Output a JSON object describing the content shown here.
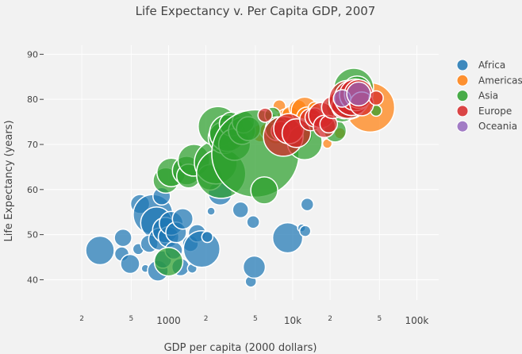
{
  "chart_data": {
    "type": "scatter",
    "title": "Life Expectancy v. Per Capita GDP, 2007",
    "xlabel": "GDP per capita (2000 dollars)",
    "ylabel": "Life Expectancy (years)",
    "x_scale": "log",
    "xlim": [
      100,
      150000
    ],
    "ylim": [
      35.5,
      92
    ],
    "x_major_ticks": [
      {
        "value": 1000,
        "label": "1000"
      },
      {
        "value": 10000,
        "label": "10k"
      },
      {
        "value": 100000,
        "label": "100k"
      }
    ],
    "x_minor_ticks": [
      {
        "value": 200,
        "label": "2"
      },
      {
        "value": 500,
        "label": "5"
      },
      {
        "value": 2000,
        "label": "2"
      },
      {
        "value": 5000,
        "label": "5"
      },
      {
        "value": 20000,
        "label": "2"
      },
      {
        "value": 50000,
        "label": "5"
      }
    ],
    "y_ticks": [
      40,
      50,
      60,
      70,
      80,
      90
    ],
    "grid": true,
    "legend_position": "top-right",
    "marker_size_unit": "marker diameter in px",
    "series": [
      {
        "name": "Africa",
        "color": "#1f77b4",
        "points": [
          [
            280,
            46.5,
            36
          ],
          [
            430,
            49.3,
            22
          ],
          [
            420,
            45.7,
            18
          ],
          [
            490,
            43.5,
            24
          ],
          [
            570,
            46.8,
            14
          ],
          [
            590,
            56.8,
            24
          ],
          [
            650,
            42.5,
            10
          ],
          [
            750,
            54.5,
            50
          ],
          [
            800,
            52.6,
            40
          ],
          [
            700,
            48.0,
            22
          ],
          [
            850,
            49.0,
            28
          ],
          [
            820,
            42.0,
            26
          ],
          [
            900,
            44.5,
            22
          ],
          [
            880,
            58.5,
            22
          ],
          [
            940,
            51.0,
            32
          ],
          [
            1000,
            49.5,
            26
          ],
          [
            1050,
            52.5,
            30
          ],
          [
            1100,
            46.5,
            22
          ],
          [
            1150,
            50.5,
            26
          ],
          [
            1250,
            42.8,
            22
          ],
          [
            1300,
            53.5,
            26
          ],
          [
            1500,
            48.0,
            20
          ],
          [
            1550,
            42.5,
            12
          ],
          [
            1700,
            50.3,
            22
          ],
          [
            1850,
            46.8,
            46
          ],
          [
            2050,
            49.5,
            14
          ],
          [
            2200,
            55.2,
            10
          ],
          [
            2600,
            59.2,
            30
          ],
          [
            3800,
            55.5,
            20
          ],
          [
            4600,
            39.6,
            14
          ],
          [
            4800,
            52.8,
            16
          ],
          [
            4900,
            42.8,
            28
          ],
          [
            9100,
            49.3,
            38
          ],
          [
            11800,
            51.5,
            10
          ],
          [
            12600,
            50.8,
            14
          ],
          [
            13100,
            56.7,
            16
          ]
        ]
      },
      {
        "name": "Americas",
        "color": "#ff7f0e",
        "points": [
          [
            3000,
            71.5,
            22
          ],
          [
            3500,
            70.5,
            16
          ],
          [
            5500,
            72.5,
            22
          ],
          [
            6400,
            73.0,
            22
          ],
          [
            7300,
            72.4,
            26
          ],
          [
            7800,
            78.5,
            16
          ],
          [
            8600,
            73.8,
            16
          ],
          [
            9000,
            75.5,
            28
          ],
          [
            9600,
            76.5,
            22
          ],
          [
            10400,
            73.2,
            28
          ],
          [
            11000,
            78.0,
            22
          ],
          [
            11900,
            74.5,
            24
          ],
          [
            12500,
            77.5,
            34
          ],
          [
            13000,
            76.0,
            26
          ],
          [
            15000,
            78.0,
            16
          ],
          [
            18000,
            75.5,
            16
          ],
          [
            19000,
            70.2,
            12
          ],
          [
            24000,
            72.5,
            14
          ],
          [
            36000,
            80.7,
            26
          ],
          [
            42000,
            78.2,
            62
          ]
        ]
      },
      {
        "name": "Asia",
        "color": "#2ca02c",
        "points": [
          [
            950,
            62.0,
            32
          ],
          [
            1000,
            44.0,
            36
          ],
          [
            1050,
            63.8,
            36
          ],
          [
            1400,
            64.2,
            36
          ],
          [
            1450,
            63.0,
            30
          ],
          [
            1600,
            66.5,
            40
          ],
          [
            2150,
            62.7,
            32
          ],
          [
            2400,
            66.0,
            54
          ],
          [
            2500,
            74.0,
            50
          ],
          [
            2650,
            63.5,
            62
          ],
          [
            2800,
            71.5,
            40
          ],
          [
            3000,
            72.5,
            46
          ],
          [
            3200,
            74.5,
            30
          ],
          [
            3400,
            70.0,
            40
          ],
          [
            3900,
            73.0,
            34
          ],
          [
            4000,
            75.0,
            28
          ],
          [
            4400,
            73.5,
            30
          ],
          [
            5000,
            68.0,
            110
          ],
          [
            5900,
            59.8,
            34
          ],
          [
            6900,
            76.5,
            20
          ],
          [
            7500,
            73.5,
            30
          ],
          [
            11000,
            72.5,
            38
          ],
          [
            12500,
            70.5,
            44
          ],
          [
            22000,
            73.0,
            28
          ],
          [
            25000,
            78.5,
            40
          ],
          [
            27000,
            79.5,
            22
          ],
          [
            29000,
            79.0,
            38
          ],
          [
            31000,
            82.5,
            50
          ],
          [
            33000,
            82.0,
            36
          ],
          [
            47000,
            77.5,
            14
          ]
        ]
      },
      {
        "name": "Europe",
        "color": "#d62728",
        "points": [
          [
            6000,
            76.5,
            18
          ],
          [
            8000,
            73.0,
            24
          ],
          [
            8400,
            71.8,
            50
          ],
          [
            9300,
            73.5,
            38
          ],
          [
            10700,
            72.5,
            36
          ],
          [
            14000,
            75.5,
            28
          ],
          [
            15000,
            76.0,
            24
          ],
          [
            17000,
            76.5,
            32
          ],
          [
            18000,
            74.0,
            28
          ],
          [
            19500,
            74.5,
            22
          ],
          [
            21000,
            78.2,
            28
          ],
          [
            24000,
            79.5,
            28
          ],
          [
            26000,
            78.5,
            32
          ],
          [
            28000,
            80.0,
            48
          ],
          [
            30000,
            80.3,
            44
          ],
          [
            32000,
            81.0,
            40
          ],
          [
            34000,
            81.2,
            36
          ],
          [
            36000,
            79.0,
            30
          ],
          [
            47000,
            80.3,
            18
          ]
        ]
      },
      {
        "name": "Oceania",
        "color": "#9467bd",
        "points": [
          [
            25000,
            80.2,
            22
          ],
          [
            34000,
            81.2,
            30
          ]
        ]
      }
    ]
  }
}
